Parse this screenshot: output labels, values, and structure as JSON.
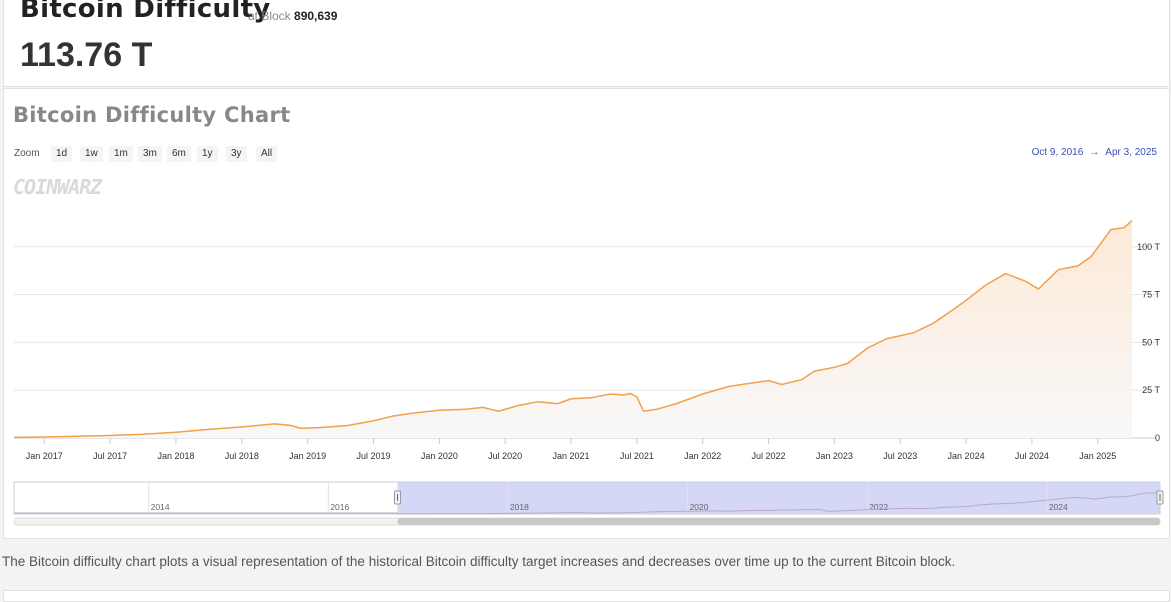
{
  "header": {
    "title": "Bitcoin Difficulty",
    "at_block_label": "at Block",
    "block": "890,639",
    "value": "113.76 T"
  },
  "chart_section": {
    "title": "Bitcoin Difficulty Chart",
    "zoom_label": "Zoom",
    "zoom_buttons": [
      "1d",
      "1w",
      "1m",
      "3m",
      "6m",
      "1y",
      "3y",
      "All"
    ],
    "range_from": "Oct 9, 2016",
    "range_arrow": "→",
    "range_to": "Apr 3, 2025",
    "watermark": "COINWARZ"
  },
  "chart_data": {
    "type": "area",
    "x_ticks": [
      "Jan 2017",
      "Jul 2017",
      "Jan 2018",
      "Jul 2018",
      "Jan 2019",
      "Jul 2019",
      "Jan 2020",
      "Jul 2020",
      "Jan 2021",
      "Jul 2021",
      "Jan 2022",
      "Jul 2022",
      "Jan 2023",
      "Jul 2023",
      "Jan 2024",
      "Jul 2024",
      "Jan 2025"
    ],
    "y_ticks": [
      "0",
      "25 T",
      "50 T",
      "75 T",
      "100 T"
    ],
    "ylim": [
      0,
      125
    ],
    "xlim": [
      2016.77,
      2025.26
    ],
    "series": [
      {
        "x": [
          2016.77,
          2017.0,
          2017.25,
          2017.5,
          2017.75,
          2018.0,
          2018.25,
          2018.5,
          2018.75,
          2018.87,
          2018.95,
          2019.1,
          2019.3,
          2019.5,
          2019.65,
          2019.8,
          2020.0,
          2020.2,
          2020.33,
          2020.45,
          2020.6,
          2020.75,
          2020.9,
          2021.0,
          2021.15,
          2021.3,
          2021.4,
          2021.45,
          2021.5,
          2021.55,
          2021.65,
          2021.8,
          2022.0,
          2022.2,
          2022.35,
          2022.5,
          2022.6,
          2022.75,
          2022.85,
          2023.0,
          2023.1,
          2023.25,
          2023.4,
          2023.6,
          2023.75,
          2023.9,
          2024.0,
          2024.15,
          2024.3,
          2024.45,
          2024.55,
          2024.7,
          2024.85,
          2024.95,
          2025.1,
          2025.2,
          2025.26
        ],
        "y": [
          0.3,
          0.5,
          0.9,
          1.3,
          2.0,
          3.0,
          4.5,
          5.8,
          7.4,
          6.6,
          5.0,
          5.5,
          6.5,
          9.0,
          11.5,
          13.0,
          14.5,
          15.0,
          16.0,
          14.0,
          17.0,
          19.0,
          18.0,
          20.5,
          21.0,
          23.0,
          22.5,
          23.2,
          21.5,
          14.0,
          15.0,
          18.0,
          23.0,
          27.0,
          28.5,
          30.0,
          28.0,
          30.5,
          35.0,
          37.0,
          39.0,
          47.0,
          52.0,
          55.0,
          60.0,
          67.0,
          72.0,
          80.0,
          86.0,
          82.0,
          78.0,
          88.0,
          90.0,
          95.0,
          109.0,
          110.0,
          113.76
        ]
      }
    ],
    "navigator_ticks": [
      "2014",
      "2016",
      "2018",
      "2020",
      "2022",
      "2024"
    ],
    "navigator_xlim": [
      2012.5,
      2025.26
    ],
    "colors": {
      "line": "#f0a14a",
      "area_top": "#fde9d7",
      "selection": "#ccd0f4"
    }
  },
  "description": "The Bitcoin difficulty chart plots a visual representation of the historical Bitcoin difficulty target increases and decreases over time up to the current Bitcoin block."
}
